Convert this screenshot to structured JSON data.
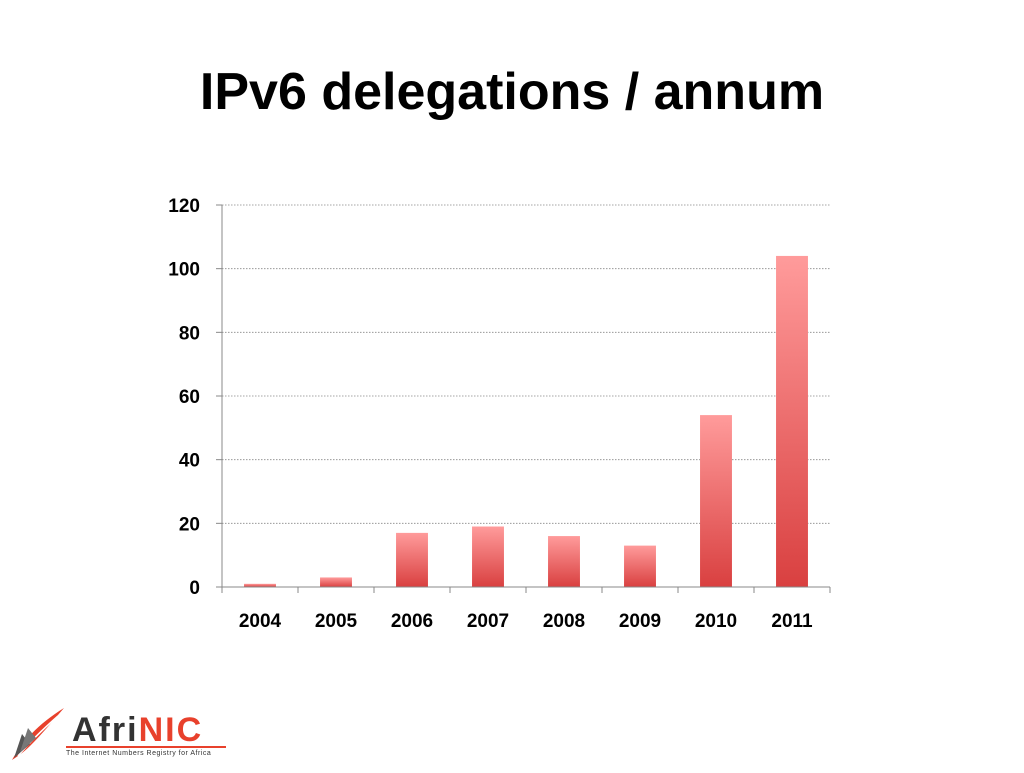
{
  "slide": {
    "title": "IPv6 delegations / annum"
  },
  "chart_data": {
    "type": "bar",
    "title": "",
    "xlabel": "",
    "ylabel": "",
    "categories": [
      "2004",
      "2005",
      "2006",
      "2007",
      "2008",
      "2009",
      "2010",
      "2011"
    ],
    "values": [
      1,
      3,
      17,
      19,
      16,
      13,
      54,
      104
    ],
    "ylim": [
      0,
      120
    ],
    "yticks": [
      0,
      20,
      40,
      60,
      80,
      100,
      120
    ],
    "grid": true,
    "legend": "none",
    "bar_color_top": "#ff9b9b",
    "bar_color_bottom": "#d94040"
  },
  "logo": {
    "wordmark_part1": "Afri",
    "wordmark_part2": "NIC",
    "tagline": "The Internet Numbers Registry for Africa",
    "accent_color": "#e8412c"
  }
}
